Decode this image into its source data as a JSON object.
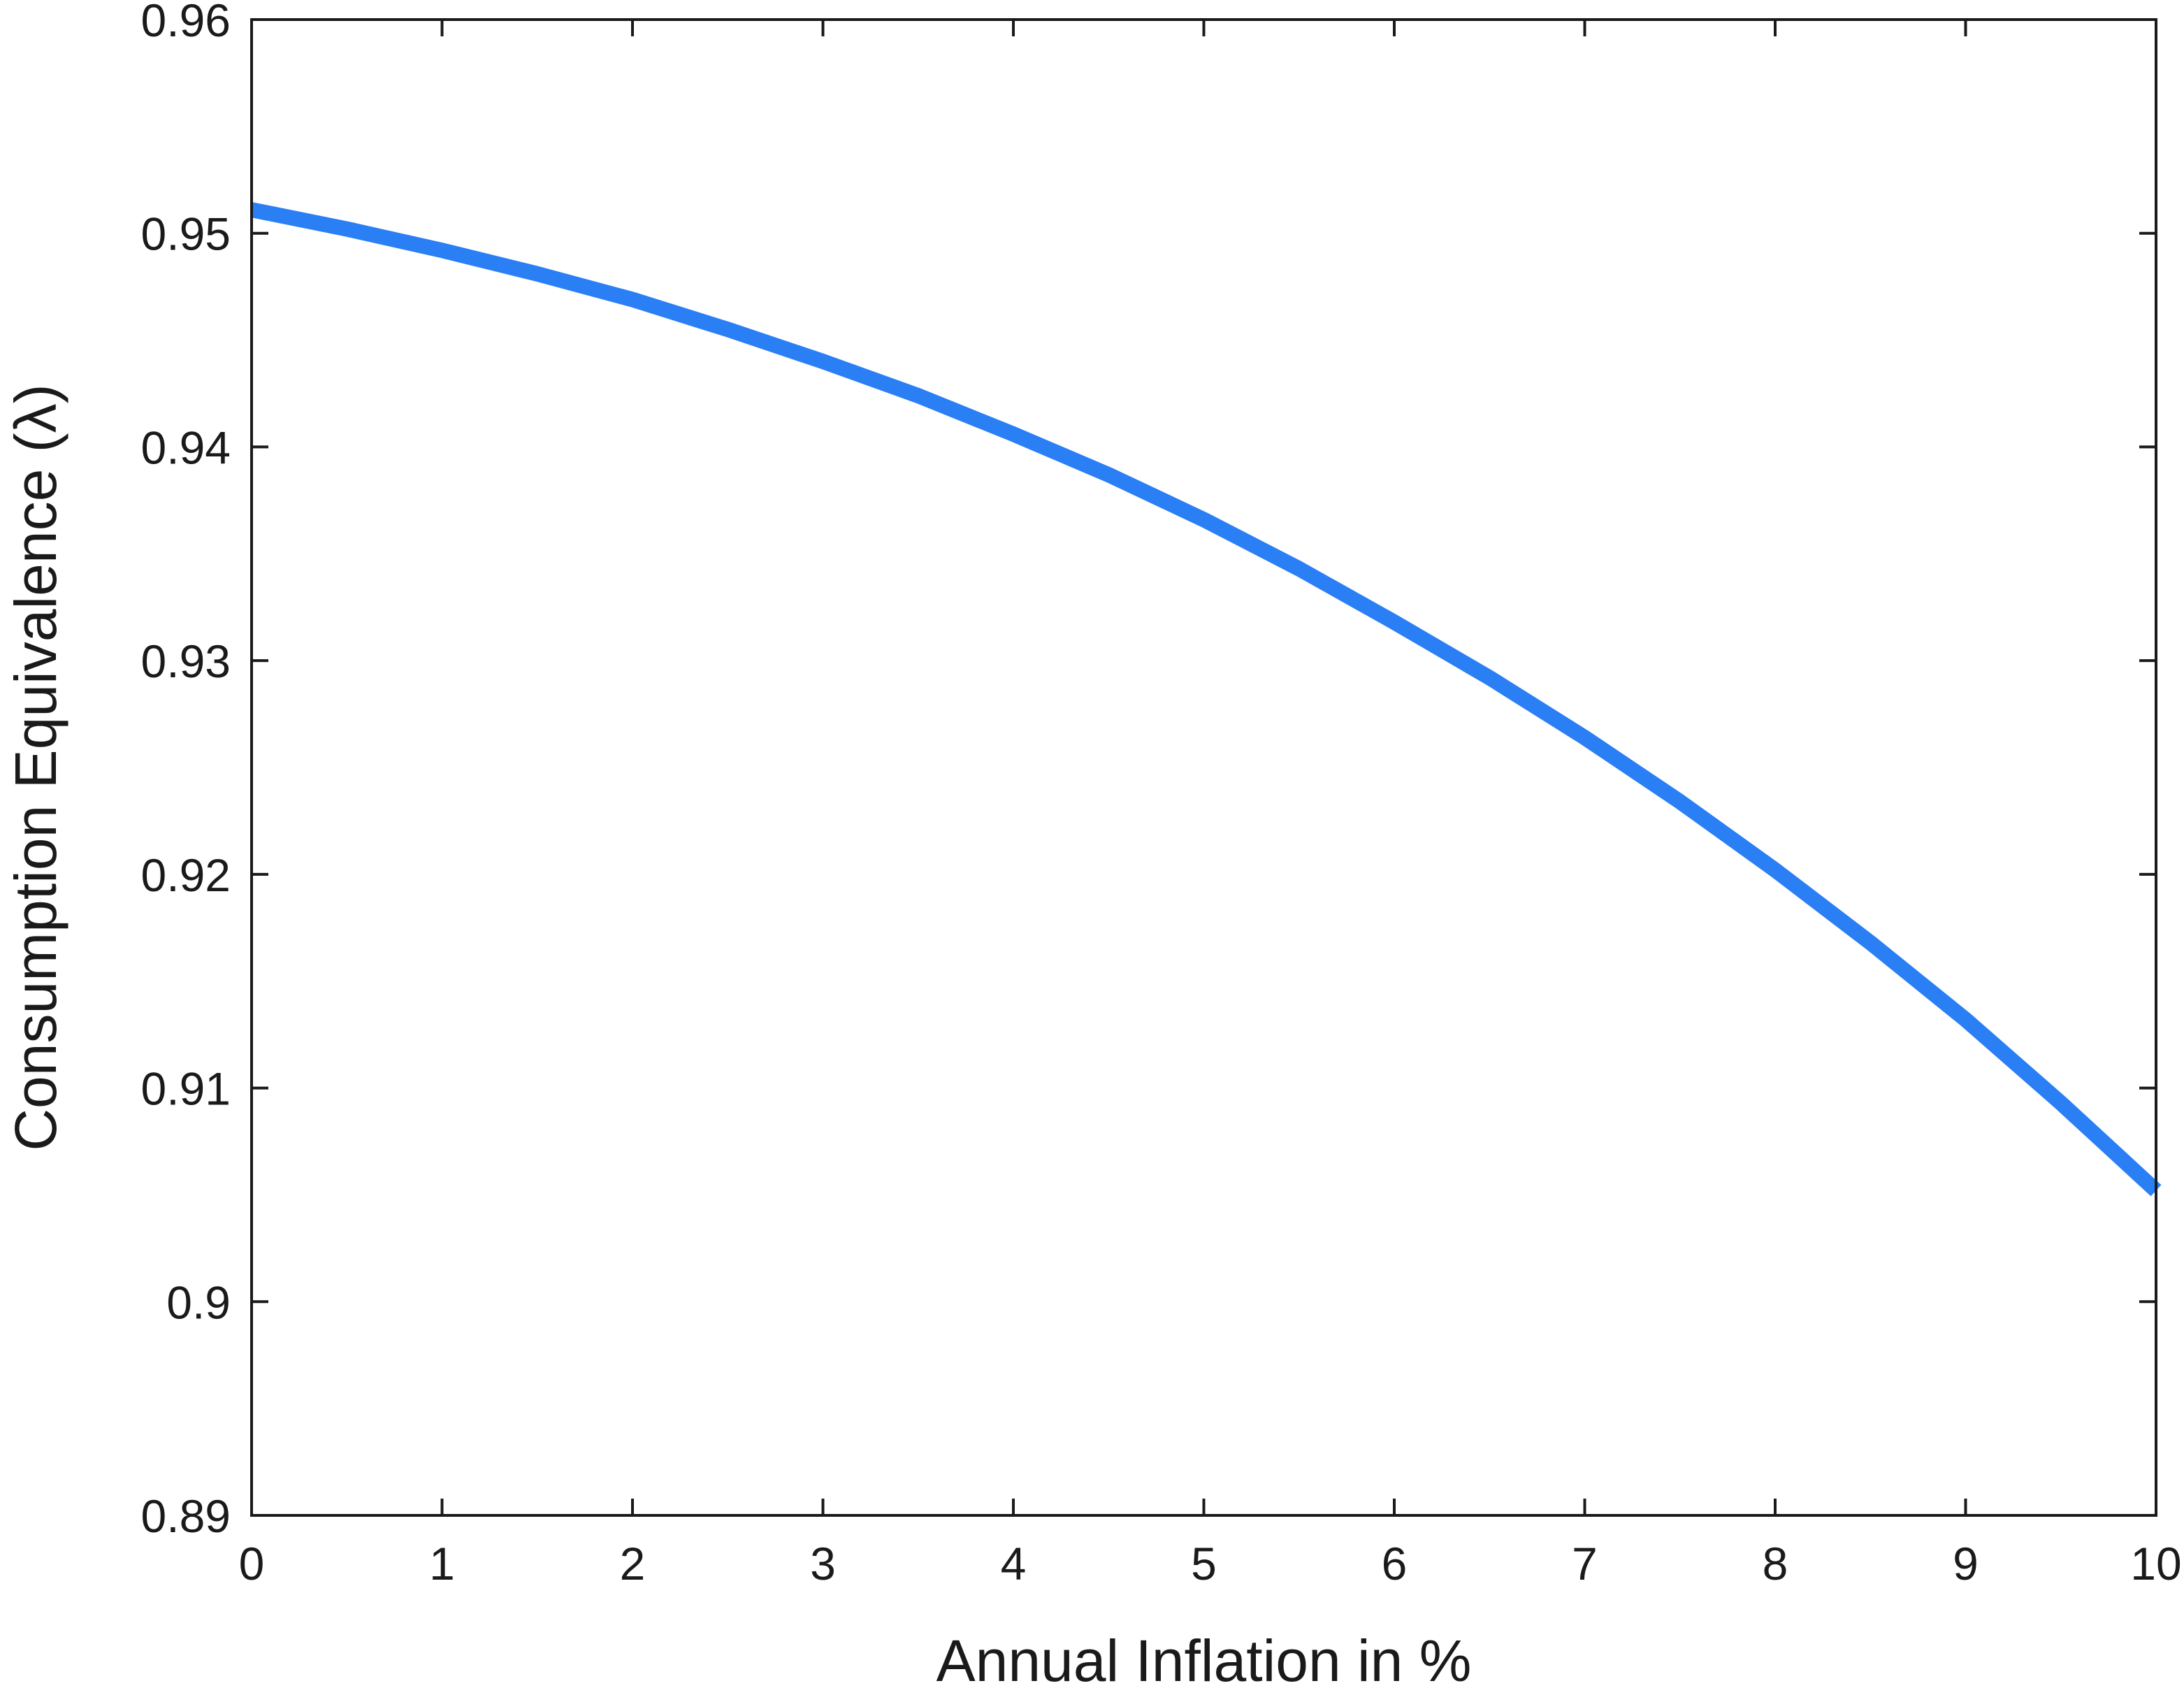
{
  "chart_data": {
    "type": "line",
    "title": "",
    "xlabel": "Annual Inflation in %",
    "ylabel": "Consumption Equivalence (λ)",
    "xlim": [
      0,
      10
    ],
    "ylim": [
      0.89,
      0.96
    ],
    "xticks": [
      0,
      1,
      2,
      3,
      4,
      5,
      6,
      7,
      8,
      9,
      10
    ],
    "xtick_labels": [
      "0",
      "1",
      "2",
      "3",
      "4",
      "5",
      "6",
      "7",
      "8",
      "9",
      "10"
    ],
    "yticks": [
      0.89,
      0.9,
      0.91,
      0.92,
      0.93,
      0.94,
      0.95,
      0.96
    ],
    "ytick_labels": [
      "0.89",
      "0.9",
      "0.91",
      "0.92",
      "0.93",
      "0.94",
      "0.95",
      "0.96"
    ],
    "grid": false,
    "legend": "none",
    "series": [
      {
        "color": "#2a7ff5",
        "x": [
          0,
          0.5,
          1,
          1.5,
          2,
          2.5,
          3,
          3.5,
          4,
          4.5,
          5,
          5.5,
          6,
          6.5,
          7,
          7.5,
          8,
          8.5,
          9,
          9.5,
          10
        ],
        "y": [
          0.9511,
          0.9502,
          0.9492,
          0.9481,
          0.9469,
          0.9455,
          0.944,
          0.9424,
          0.9406,
          0.9387,
          0.9366,
          0.9343,
          0.9318,
          0.9292,
          0.9264,
          0.9234,
          0.9202,
          0.9168,
          0.9132,
          0.9093,
          0.9052
        ]
      }
    ]
  }
}
